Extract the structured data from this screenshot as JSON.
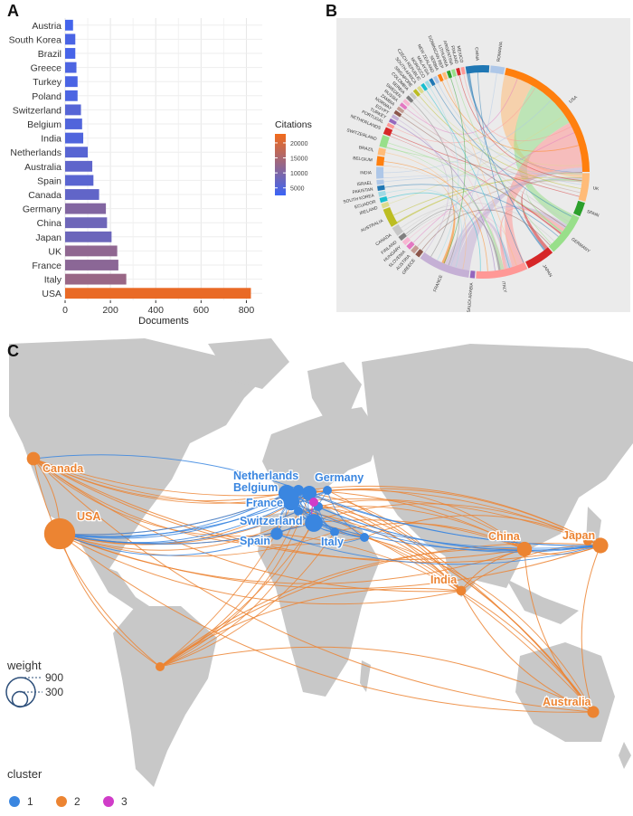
{
  "panels": {
    "a": "A",
    "b": "B",
    "c": "C"
  },
  "chart_data": [
    {
      "type": "bar",
      "orientation": "horizontal",
      "categories": [
        "Austria",
        "South Korea",
        "Brazil",
        "Greece",
        "Turkey",
        "Poland",
        "Switzerland",
        "Belgium",
        "India",
        "Netherlands",
        "Australia",
        "Spain",
        "Canada",
        "Germany",
        "China",
        "Japan",
        "UK",
        "France",
        "Italy",
        "USA"
      ],
      "values": [
        35,
        45,
        45,
        50,
        55,
        55,
        70,
        75,
        80,
        100,
        120,
        125,
        150,
        180,
        185,
        205,
        230,
        235,
        270,
        820
      ],
      "citations": [
        3500,
        4200,
        3800,
        4500,
        4200,
        4400,
        5500,
        5000,
        4800,
        5800,
        6500,
        6000,
        6800,
        10500,
        8200,
        8000,
        12000,
        11500,
        13000,
        22000
      ],
      "xlabel": "Documents",
      "xlim": [
        0,
        870
      ],
      "xticks": [
        0,
        200,
        400,
        600,
        800
      ],
      "grid": true,
      "legend": {
        "title": "Citations",
        "ticks": [
          5000,
          10000,
          15000,
          20000
        ],
        "range": [
          2500,
          23000
        ],
        "colors": [
          "#3b64f6",
          "#f26a1b"
        ],
        "placement": "right"
      }
    },
    {
      "type": "chord",
      "segments": [
        {
          "name": "USA",
          "color": "#ff7f0e",
          "size": 60
        },
        {
          "name": "UK",
          "color": "#ffbb78",
          "size": 12
        },
        {
          "name": "SPAIN",
          "color": "#2ca02c",
          "size": 6
        },
        {
          "name": "GERMANY",
          "color": "#98df8a",
          "size": 18
        },
        {
          "name": "JAPAN",
          "color": "#d62728",
          "size": 12
        },
        {
          "name": "ITALY",
          "color": "#ff9896",
          "size": 22
        },
        {
          "name": "SAUDI ARABIA",
          "color": "#9467bd",
          "size": 2
        },
        {
          "name": "FRANCE",
          "color": "#c5b0d5",
          "size": 22
        },
        {
          "name": "GREECE",
          "color": "#8c564b",
          "size": 2
        },
        {
          "name": "AUSTRIA",
          "color": "#c49c94",
          "size": 2
        },
        {
          "name": "SLOVENIA",
          "color": "#e377c2",
          "size": 2
        },
        {
          "name": "HUNGARY",
          "color": "#f7b6d2",
          "size": 2
        },
        {
          "name": "FINLAND",
          "color": "#7f7f7f",
          "size": 2
        },
        {
          "name": "CANADA",
          "color": "#c7c7c7",
          "size": 4
        },
        {
          "name": "AUSTRALIA",
          "color": "#bcbd22",
          "size": 8
        },
        {
          "name": "IRELAND",
          "color": "#dbdb8d",
          "size": 2
        },
        {
          "name": "ECUADOR",
          "color": "#17becf",
          "size": 2
        },
        {
          "name": "SOUTH KOREA",
          "color": "#9edae5",
          "size": 2
        },
        {
          "name": "PAKISTAN",
          "color": "#1f77b4",
          "size": 2
        },
        {
          "name": "ISRAEL",
          "color": "#aec7e8",
          "size": 2
        },
        {
          "name": "INDIA",
          "color": "#aec7e8",
          "size": 5
        },
        {
          "name": "BELGIUM",
          "color": "#ff7f0e",
          "size": 4
        },
        {
          "name": "BRAZIL",
          "color": "#ffbb78",
          "size": 3
        },
        {
          "name": "SWITZERLAND",
          "color": "#98df8a",
          "size": 5
        },
        {
          "name": "NETHERLANDS",
          "color": "#d62728",
          "size": 3
        },
        {
          "name": "PORTUGAL",
          "color": "#ff9896",
          "size": 1.5
        },
        {
          "name": "TURKEY",
          "color": "#9467bd",
          "size": 1.5
        },
        {
          "name": "EGYPT",
          "color": "#c5b0d5",
          "size": 1.5
        },
        {
          "name": "NORWAY",
          "color": "#8c564b",
          "size": 1.5
        },
        {
          "name": "ZAMBIA",
          "color": "#c49c94",
          "size": 1.5
        },
        {
          "name": "RUSSIA",
          "color": "#e377c2",
          "size": 1.5
        },
        {
          "name": "SWEDEN",
          "color": "#f7b6d2",
          "size": 1.5
        },
        {
          "name": "SERBIA",
          "color": "#7f7f7f",
          "size": 1.5
        },
        {
          "name": "COLOMBIA",
          "color": "#c7c7c7",
          "size": 1.5
        },
        {
          "name": "SINGAPORE",
          "color": "#bcbd22",
          "size": 1.5
        },
        {
          "name": "SOUTH AFRICA",
          "color": "#dbdb8d",
          "size": 1.5
        },
        {
          "name": "CZECH REPUBLIC",
          "color": "#17becf",
          "size": 1.5
        },
        {
          "name": "MOROCCO",
          "color": "#9edae5",
          "size": 1.5
        },
        {
          "name": "MALAYSIA",
          "color": "#1f77b4",
          "size": 1.5
        },
        {
          "name": "NEW ZEALAND",
          "color": "#aec7e8",
          "size": 1.5
        },
        {
          "name": "SERBIA",
          "color": "#ff7f0e",
          "size": 1.5
        },
        {
          "name": "DOMINICAN REP",
          "color": "#ffbb78",
          "size": 1.5
        },
        {
          "name": "LITHUANIA",
          "color": "#2ca02c",
          "size": 1.5
        },
        {
          "name": "ARGENTINA",
          "color": "#98df8a",
          "size": 1.5
        },
        {
          "name": "FINLAND",
          "color": "#d62728",
          "size": 1.5
        },
        {
          "name": "MEXICO",
          "color": "#ff9896",
          "size": 1.5
        },
        {
          "name": "CHINA",
          "color": "#1f77b4",
          "size": 10
        },
        {
          "name": "ROMANIA",
          "color": "#aec7e8",
          "size": 6
        }
      ]
    },
    {
      "type": "network-map",
      "legend": {
        "weight_title": "weight",
        "weight_ticks": [
          900,
          300
        ],
        "cluster_title": "cluster",
        "clusters": [
          {
            "label": "1",
            "color": "#3a86e0"
          },
          {
            "label": "2",
            "color": "#ec8432"
          },
          {
            "label": "3",
            "color": "#d03cc8"
          }
        ]
      },
      "land_color": "#c8c8c8",
      "nodes": [
        {
          "name": "USA",
          "cluster": 2,
          "weight": 820,
          "labeled": true
        },
        {
          "name": "Canada",
          "cluster": 2,
          "weight": 150,
          "labeled": true
        },
        {
          "name": "China",
          "cluster": 2,
          "weight": 185,
          "labeled": true
        },
        {
          "name": "Japan",
          "cluster": 2,
          "weight": 205,
          "labeled": true
        },
        {
          "name": "India",
          "cluster": 2,
          "weight": 80,
          "labeled": true
        },
        {
          "name": "Australia",
          "cluster": 2,
          "weight": 120,
          "labeled": true
        },
        {
          "name": "Brazil",
          "cluster": 2,
          "weight": 45,
          "labeled": false
        },
        {
          "name": "Netherlands",
          "cluster": 1,
          "weight": 100,
          "labeled": true
        },
        {
          "name": "Belgium",
          "cluster": 1,
          "weight": 75,
          "labeled": true
        },
        {
          "name": "Germany",
          "cluster": 1,
          "weight": 180,
          "labeled": true
        },
        {
          "name": "France",
          "cluster": 1,
          "weight": 235,
          "labeled": true
        },
        {
          "name": "Switzerland",
          "cluster": 1,
          "weight": 70,
          "labeled": true
        },
        {
          "name": "Spain",
          "cluster": 1,
          "weight": 125,
          "labeled": true
        },
        {
          "name": "Italy",
          "cluster": 1,
          "weight": 270,
          "labeled": true
        },
        {
          "name": "UK",
          "cluster": 1,
          "weight": 230,
          "labeled": false
        },
        {
          "name": "Austria",
          "cluster": 1,
          "weight": 35,
          "labeled": false
        },
        {
          "name": "Poland",
          "cluster": 1,
          "weight": 55,
          "labeled": false
        },
        {
          "name": "Greece",
          "cluster": 1,
          "weight": 50,
          "labeled": false
        },
        {
          "name": "Turkey",
          "cluster": 1,
          "weight": 55,
          "labeled": false
        },
        {
          "name": "South Korea",
          "cluster": 2,
          "weight": 45,
          "labeled": false
        },
        {
          "name": "Hungary",
          "cluster": 3,
          "weight": 20,
          "labeled": false
        }
      ]
    }
  ]
}
